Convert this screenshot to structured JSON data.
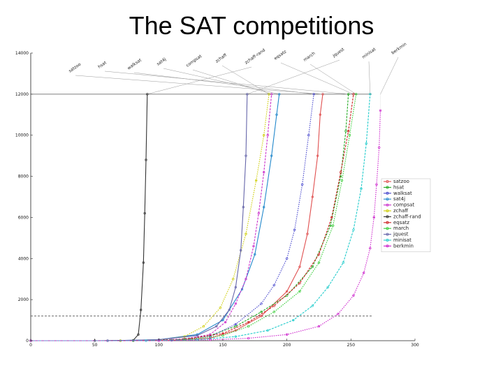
{
  "slide": {
    "title": "The SAT competitions"
  },
  "chart_data": {
    "type": "line",
    "title": "",
    "subtitle": "",
    "xlabel": "",
    "ylabel": "",
    "xlim": [
      0,
      300
    ],
    "ylim": [
      0,
      14000
    ],
    "x_ticks": [
      "0",
      "50",
      "100",
      "150",
      "200",
      "250",
      "300"
    ],
    "y_ticks": [
      "0",
      "2000",
      "4000",
      "6000",
      "8000",
      "10000",
      "12000",
      "14000"
    ],
    "reference_lines": [
      {
        "axis": "y",
        "value": 12000,
        "style": "solid"
      },
      {
        "axis": "y",
        "value": 1200,
        "style": "dashed"
      }
    ],
    "legend_position": "right",
    "series": [
      {
        "name": "satzoo",
        "color": "#e05050",
        "points": [
          [
            0,
            0
          ],
          [
            60,
            0
          ],
          [
            110,
            20
          ],
          [
            140,
            120
          ],
          [
            160,
            500
          ],
          [
            180,
            1200
          ],
          [
            200,
            2400
          ],
          [
            210,
            3600
          ],
          [
            216,
            5200
          ],
          [
            220,
            7000
          ],
          [
            224,
            9000
          ],
          [
            226,
            11000
          ],
          [
            228,
            12000
          ]
        ]
      },
      {
        "name": "hsat",
        "color": "#22aa22",
        "points": [
          [
            0,
            0
          ],
          [
            70,
            0
          ],
          [
            110,
            30
          ],
          [
            140,
            250
          ],
          [
            160,
            700
          ],
          [
            180,
            1400
          ],
          [
            200,
            2200
          ],
          [
            220,
            3600
          ],
          [
            234,
            5600
          ],
          [
            242,
            8000
          ],
          [
            246,
            10200
          ],
          [
            248,
            12000
          ]
        ]
      },
      {
        "name": "walksat",
        "color": "#4444cc",
        "points": [
          [
            0,
            0
          ],
          [
            70,
            0
          ],
          [
            110,
            25
          ],
          [
            140,
            200
          ],
          [
            160,
            800
          ],
          [
            180,
            1800
          ],
          [
            190,
            2700
          ],
          [
            200,
            4000
          ],
          [
            206,
            5400
          ],
          [
            212,
            7600
          ],
          [
            217,
            10000
          ],
          [
            221,
            12000
          ]
        ]
      },
      {
        "name": "sat4j",
        "color": "#2288cc",
        "points": [
          [
            0,
            0
          ],
          [
            60,
            0
          ],
          [
            100,
            50
          ],
          [
            130,
            300
          ],
          [
            150,
            1000
          ],
          [
            165,
            2500
          ],
          [
            175,
            4200
          ],
          [
            182,
            6500
          ],
          [
            188,
            9000
          ],
          [
            192,
            11000
          ],
          [
            194,
            12000
          ]
        ]
      },
      {
        "name": "compsat",
        "color": "#cc33cc",
        "points": [
          [
            0,
            0
          ],
          [
            80,
            0
          ],
          [
            120,
            80
          ],
          [
            140,
            300
          ],
          [
            152,
            900
          ],
          [
            160,
            1800
          ],
          [
            168,
            3000
          ],
          [
            174,
            4600
          ],
          [
            178,
            6200
          ],
          [
            182,
            8200
          ],
          [
            185,
            10000
          ],
          [
            188,
            12000
          ]
        ]
      },
      {
        "name": "zchaff",
        "color": "#cccc00",
        "points": [
          [
            0,
            0
          ],
          [
            70,
            0
          ],
          [
            100,
            40
          ],
          [
            120,
            200
          ],
          [
            135,
            700
          ],
          [
            148,
            1600
          ],
          [
            158,
            3000
          ],
          [
            168,
            5200
          ],
          [
            176,
            7800
          ],
          [
            182,
            10000
          ],
          [
            186,
            12000
          ]
        ]
      },
      {
        "name": "zchaff-rand",
        "color": "#333333",
        "points": [
          [
            0,
            0
          ],
          [
            50,
            0
          ],
          [
            80,
            20
          ],
          [
            84,
            300
          ],
          [
            86,
            1500
          ],
          [
            88,
            3800
          ],
          [
            89,
            6200
          ],
          [
            90,
            8800
          ],
          [
            91,
            12000
          ]
        ]
      },
      {
        "name": "eqsatz",
        "color": "#cc2222",
        "points": [
          [
            0,
            0
          ],
          [
            80,
            0
          ],
          [
            120,
            60
          ],
          [
            150,
            350
          ],
          [
            170,
            900
          ],
          [
            190,
            1700
          ],
          [
            210,
            2800
          ],
          [
            225,
            4200
          ],
          [
            235,
            6000
          ],
          [
            242,
            8200
          ],
          [
            248,
            10200
          ],
          [
            252,
            12000
          ]
        ]
      },
      {
        "name": "march",
        "color": "#33cc33",
        "points": [
          [
            0,
            0
          ],
          [
            80,
            0
          ],
          [
            120,
            40
          ],
          [
            150,
            250
          ],
          [
            170,
            700
          ],
          [
            190,
            1400
          ],
          [
            210,
            2400
          ],
          [
            225,
            3800
          ],
          [
            236,
            5600
          ],
          [
            243,
            7800
          ],
          [
            249,
            10000
          ],
          [
            254,
            12000
          ]
        ]
      },
      {
        "name": "jquest",
        "color": "#6666aa",
        "points": [
          [
            0,
            0
          ],
          [
            60,
            0
          ],
          [
            100,
            50
          ],
          [
            130,
            250
          ],
          [
            145,
            700
          ],
          [
            155,
            1500
          ],
          [
            160,
            2600
          ],
          [
            164,
            4400
          ],
          [
            166,
            6500
          ],
          [
            168,
            9000
          ],
          [
            169,
            12000
          ]
        ]
      },
      {
        "name": "minisat",
        "color": "#22cccc",
        "points": [
          [
            0,
            0
          ],
          [
            90,
            0
          ],
          [
            130,
            50
          ],
          [
            160,
            200
          ],
          [
            185,
            500
          ],
          [
            205,
            1000
          ],
          [
            220,
            1700
          ],
          [
            232,
            2600
          ],
          [
            244,
            3800
          ],
          [
            252,
            5400
          ],
          [
            258,
            7400
          ],
          [
            262,
            9600
          ],
          [
            265,
            12000
          ]
        ]
      },
      {
        "name": "berkmin",
        "color": "#cc22cc",
        "points": [
          [
            0,
            0
          ],
          [
            100,
            0
          ],
          [
            140,
            40
          ],
          [
            170,
            120
          ],
          [
            200,
            300
          ],
          [
            225,
            700
          ],
          [
            240,
            1300
          ],
          [
            252,
            2200
          ],
          [
            260,
            3300
          ],
          [
            265,
            4500
          ],
          [
            268,
            6000
          ],
          [
            270,
            7600
          ],
          [
            272,
            9400
          ],
          [
            273,
            11200
          ]
        ]
      }
    ]
  }
}
